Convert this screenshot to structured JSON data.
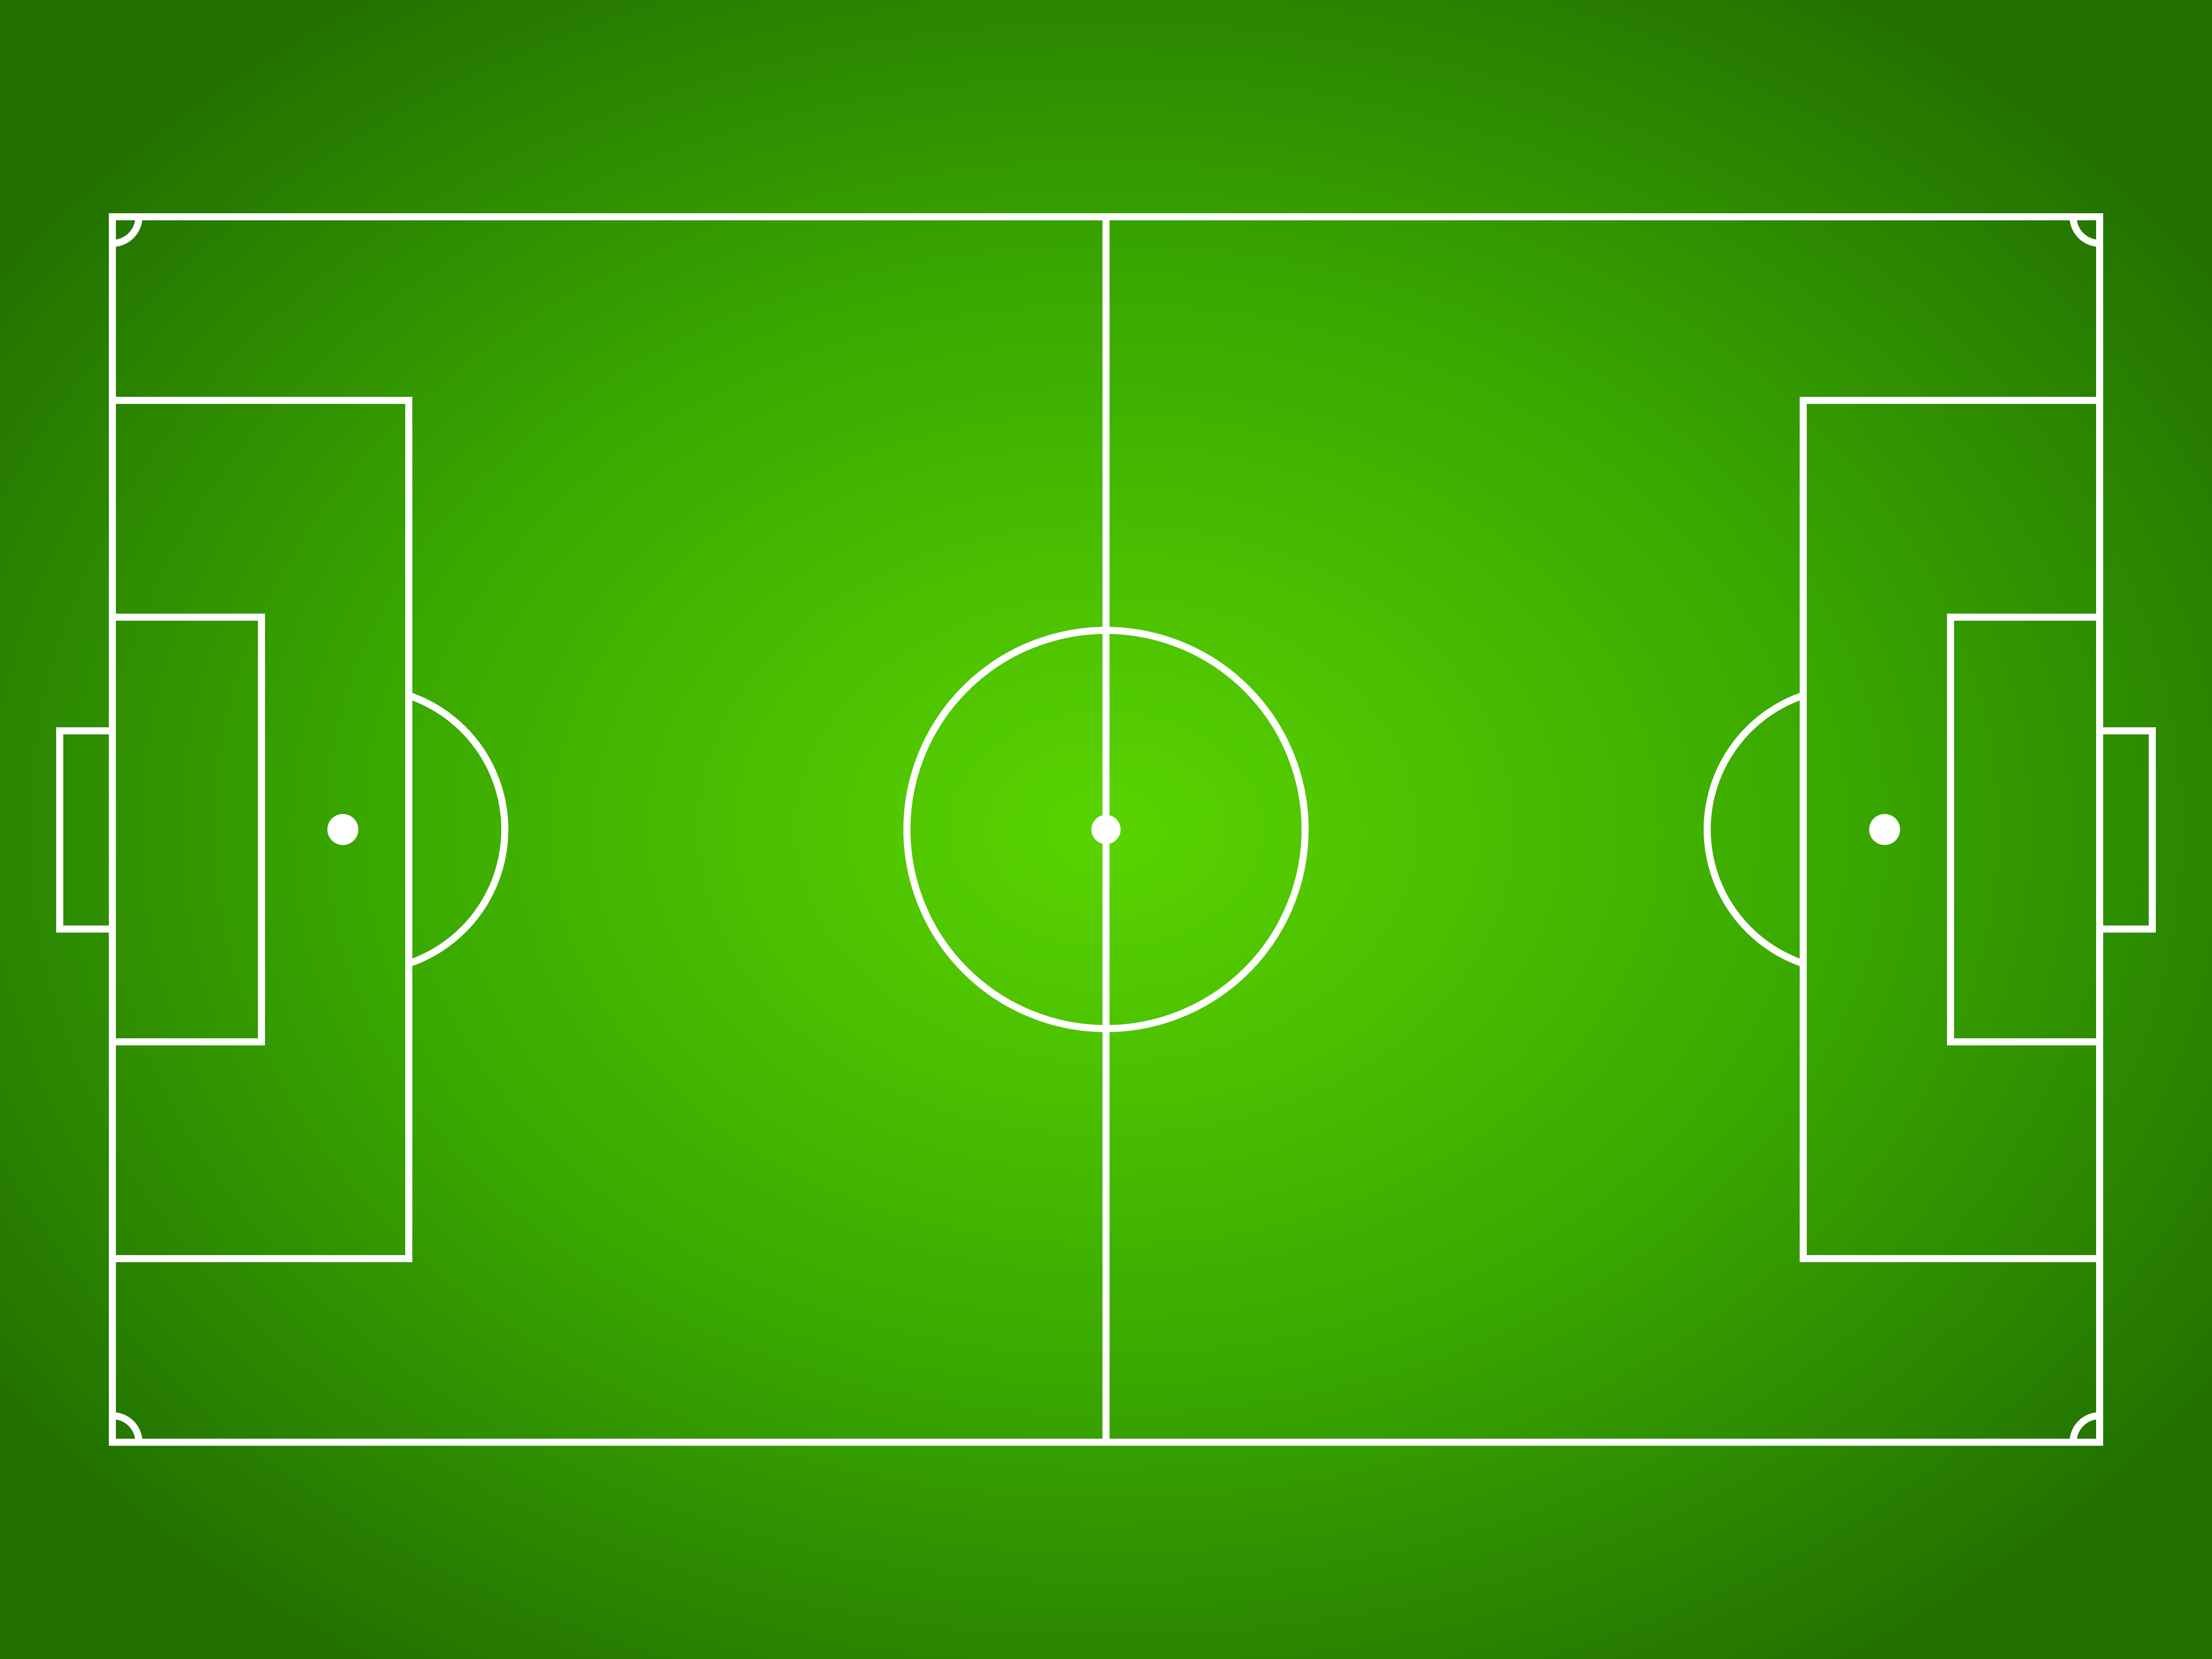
{
  "pitch": {
    "colors": {
      "grass_center": "#5ad400",
      "grass_mid": "#3aa800",
      "grass_edge": "#237200",
      "lines": "#ffffff"
    }
  }
}
